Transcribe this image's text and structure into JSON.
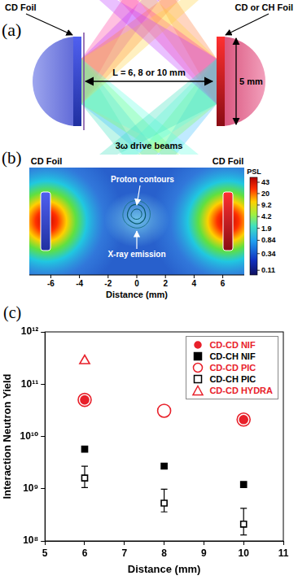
{
  "panel_a": {
    "letter": "(a)",
    "left_label": "CD Foil",
    "right_label": "CD or CH Foil",
    "separation_label": "L = 6, 8 or 10 mm",
    "size_label": "5 mm",
    "beams_label": "3ω drive beams"
  },
  "panel_b": {
    "letter": "(b)",
    "left_label": "CD Foil",
    "right_label": "CD Foil",
    "annotations": [
      "Proton contours",
      "X-ray emission"
    ],
    "xlabel": "Distance (mm)",
    "xlim": [
      -7.5,
      7.5
    ],
    "xticks": [
      -6,
      -4,
      -2,
      0,
      2,
      4,
      6
    ],
    "colorbar": {
      "label": "PSL",
      "range": [
        0.08,
        60
      ],
      "ticks": [
        43,
        20,
        9.2,
        4.2,
        1.9,
        0.84,
        0.34,
        0.11
      ]
    }
  },
  "chart_data": {
    "letter": "(c)",
    "type": "scatter",
    "xlabel": "Distance (mm)",
    "ylabel": "Interaction Neutron Yield",
    "xlim": [
      5,
      11
    ],
    "xticks": [
      5,
      6,
      7,
      8,
      9,
      10,
      11
    ],
    "ylim": [
      100000000,
      1000000000000
    ],
    "yticks": [
      {
        "value": 100000000,
        "label": "10⁸"
      },
      {
        "value": 1000000000,
        "label": "10⁹"
      },
      {
        "value": 10000000000,
        "label": "10¹⁰"
      },
      {
        "value": 100000000000,
        "label": "10¹¹"
      },
      {
        "value": 1000000000000,
        "label": "10¹²"
      }
    ],
    "log": "y",
    "grid": false,
    "legend": "upper right",
    "series": [
      {
        "name": "CD-CD NIF",
        "color": "#e8202a",
        "marker": "circle",
        "x": [
          6,
          10
        ],
        "values": [
          50000000000,
          21000000000
        ]
      },
      {
        "name": "CD-CH NIF",
        "color": "#000000",
        "marker": "square",
        "x": [
          6,
          8,
          10
        ],
        "values": [
          5700000000,
          2700000000,
          1200000000
        ]
      },
      {
        "name": "CD-CD PIC",
        "color": "#e8202a",
        "marker": "circle-open",
        "x": [
          6,
          8,
          10
        ],
        "values": [
          50000000000,
          31000000000,
          21000000000
        ]
      },
      {
        "name": "CD-CH PIC",
        "color": "#000000",
        "marker": "square-open",
        "x": [
          6,
          8,
          10
        ],
        "values": [
          1600000000,
          530000000,
          210000000
        ],
        "error_low": [
          1050000000,
          360000000,
          130000000
        ],
        "error_high": [
          2700000000,
          980000000,
          420000000
        ]
      },
      {
        "name": "CD-CD HYDRA",
        "color": "#e8202a",
        "marker": "triangle-open",
        "x": [
          6
        ],
        "values": [
          280000000000
        ]
      }
    ]
  }
}
